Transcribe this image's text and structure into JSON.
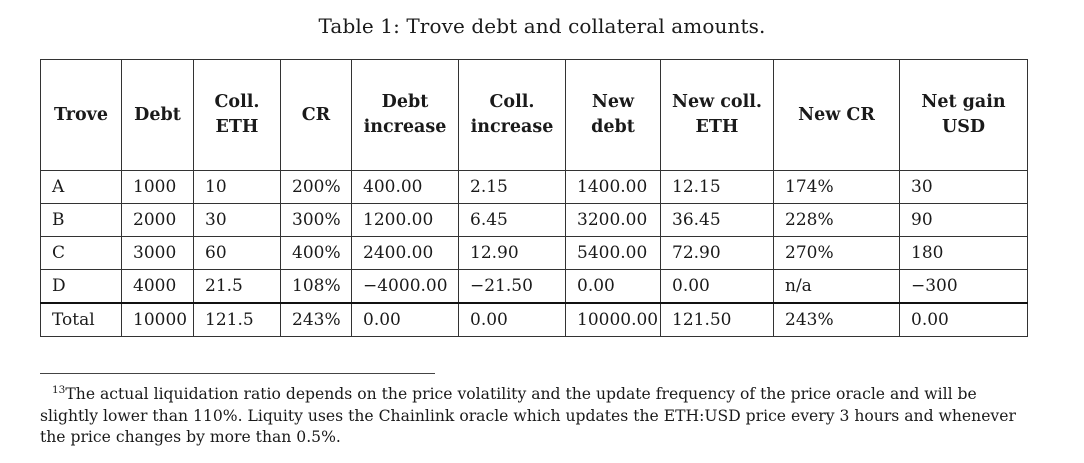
{
  "caption": "Table 1:  Trove debt and collateral amounts.",
  "table": {
    "headers": [
      [
        "Trove"
      ],
      [
        "Debt"
      ],
      [
        "Coll.",
        "ETH"
      ],
      [
        "CR"
      ],
      [
        "Debt",
        "increase"
      ],
      [
        "Coll.",
        "increase"
      ],
      [
        "New",
        "debt"
      ],
      [
        "New coll.",
        "ETH"
      ],
      [
        "New CR"
      ],
      [
        "Net gain",
        "USD"
      ]
    ],
    "rows": [
      [
        "A",
        "1000",
        "10",
        "200%",
        "400.00",
        "2.15",
        "1400.00",
        "12.15",
        "174%",
        "30"
      ],
      [
        "B",
        "2000",
        "30",
        "300%",
        "1200.00",
        "6.45",
        "3200.00",
        "36.45",
        "228%",
        "90"
      ],
      [
        "C",
        "3000",
        "60",
        "400%",
        "2400.00",
        "12.90",
        "5400.00",
        "72.90",
        "270%",
        "180"
      ],
      [
        "D",
        "4000",
        "21.5",
        "108%",
        "−4000.00",
        "−21.50",
        "0.00",
        "0.00",
        "n/a",
        "−300"
      ]
    ],
    "total": [
      "Total",
      "10000",
      "121.5",
      "243%",
      "0.00",
      "0.00",
      "10000.00",
      "121.50",
      "243%",
      "0.00"
    ]
  },
  "footnote": {
    "number": "13",
    "text": "The actual liquidation ratio depends on the price volatility and the update frequency of the price oracle and will be slightly lower than 110%. Liquity uses the Chainlink oracle which updates the ETH:USD price every 3 hours and whenever the price changes by more than 0.5%."
  }
}
